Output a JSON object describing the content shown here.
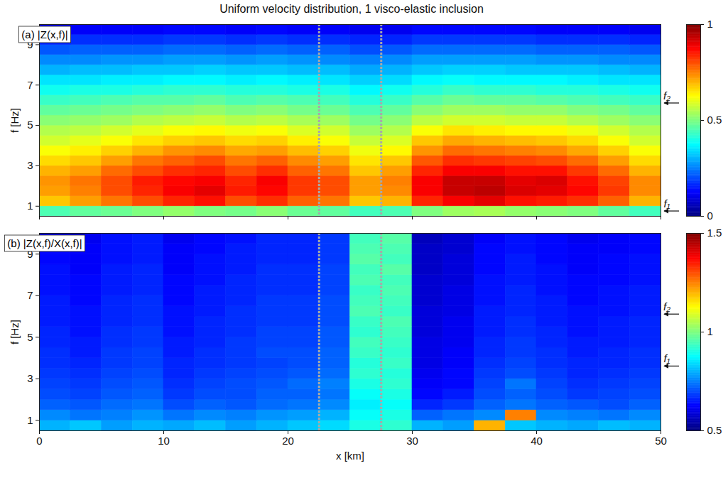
{
  "title": "Uniform velocity distribution, 1 visco-elastic inclusion",
  "chart_data": [
    {
      "type": "heatmap",
      "title": "(a) |Z(x,f)|",
      "ylabel": "f [Hz]",
      "xlim": [
        0,
        50
      ],
      "ylim": [
        0.5,
        10
      ],
      "xticks": [
        0,
        10,
        20,
        30,
        40,
        50
      ],
      "yticks": [
        1,
        3,
        5,
        7,
        9
      ],
      "tick_labels": "y",
      "x_bins": [
        0,
        2.5,
        5,
        7.5,
        10,
        12.5,
        15,
        17.5,
        20,
        22.5,
        25,
        27.5,
        30,
        32.5,
        35,
        37.5,
        40,
        42.5,
        45,
        47.5,
        50
      ],
      "y_bins": [
        0.5,
        1,
        1.5,
        2,
        2.5,
        3,
        3.5,
        4,
        4.5,
        5,
        5.5,
        6,
        6.5,
        7,
        7.5,
        8,
        8.5,
        9,
        9.5,
        10
      ],
      "values": [
        [
          0.45,
          0.47,
          0.48,
          0.5,
          0.52,
          0.5,
          0.49,
          0.51,
          0.48,
          0.47,
          0.44,
          0.45,
          0.5,
          0.53,
          0.54,
          0.52,
          0.51,
          0.5,
          0.47,
          0.44
        ],
        [
          0.68,
          0.72,
          0.76,
          0.8,
          0.84,
          0.86,
          0.8,
          0.83,
          0.78,
          0.76,
          0.68,
          0.7,
          0.84,
          0.88,
          0.9,
          0.86,
          0.85,
          0.83,
          0.78,
          0.7
        ],
        [
          0.72,
          0.75,
          0.8,
          0.84,
          0.88,
          0.9,
          0.85,
          0.87,
          0.82,
          0.8,
          0.72,
          0.74,
          0.88,
          0.93,
          0.94,
          0.91,
          0.9,
          0.87,
          0.82,
          0.74
        ],
        [
          0.73,
          0.76,
          0.8,
          0.85,
          0.87,
          0.88,
          0.84,
          0.88,
          0.82,
          0.8,
          0.72,
          0.75,
          0.88,
          0.93,
          0.93,
          0.9,
          0.91,
          0.86,
          0.81,
          0.74
        ],
        [
          0.7,
          0.72,
          0.77,
          0.8,
          0.83,
          0.84,
          0.8,
          0.83,
          0.78,
          0.76,
          0.68,
          0.72,
          0.84,
          0.88,
          0.88,
          0.86,
          0.86,
          0.82,
          0.77,
          0.7
        ],
        [
          0.66,
          0.68,
          0.72,
          0.76,
          0.78,
          0.8,
          0.76,
          0.78,
          0.74,
          0.72,
          0.65,
          0.68,
          0.79,
          0.83,
          0.82,
          0.81,
          0.8,
          0.77,
          0.72,
          0.66
        ],
        [
          0.62,
          0.64,
          0.67,
          0.7,
          0.73,
          0.74,
          0.71,
          0.72,
          0.69,
          0.67,
          0.61,
          0.63,
          0.73,
          0.77,
          0.76,
          0.75,
          0.74,
          0.71,
          0.67,
          0.62
        ],
        [
          0.58,
          0.6,
          0.62,
          0.65,
          0.67,
          0.68,
          0.66,
          0.67,
          0.64,
          0.62,
          0.57,
          0.59,
          0.68,
          0.71,
          0.7,
          0.69,
          0.68,
          0.66,
          0.62,
          0.58
        ],
        [
          0.55,
          0.56,
          0.58,
          0.6,
          0.62,
          0.63,
          0.61,
          0.62,
          0.59,
          0.58,
          0.53,
          0.55,
          0.62,
          0.65,
          0.64,
          0.63,
          0.63,
          0.61,
          0.58,
          0.55
        ],
        [
          0.51,
          0.52,
          0.53,
          0.55,
          0.56,
          0.57,
          0.55,
          0.56,
          0.54,
          0.53,
          0.49,
          0.51,
          0.56,
          0.58,
          0.58,
          0.57,
          0.57,
          0.55,
          0.53,
          0.51
        ],
        [
          0.47,
          0.48,
          0.49,
          0.5,
          0.51,
          0.52,
          0.5,
          0.51,
          0.49,
          0.48,
          0.45,
          0.47,
          0.51,
          0.53,
          0.53,
          0.52,
          0.52,
          0.5,
          0.49,
          0.47
        ],
        [
          0.43,
          0.44,
          0.45,
          0.46,
          0.46,
          0.47,
          0.45,
          0.46,
          0.45,
          0.44,
          0.41,
          0.43,
          0.46,
          0.48,
          0.47,
          0.47,
          0.46,
          0.45,
          0.44,
          0.43
        ],
        [
          0.39,
          0.4,
          0.4,
          0.41,
          0.42,
          0.42,
          0.41,
          0.41,
          0.4,
          0.4,
          0.37,
          0.39,
          0.41,
          0.43,
          0.42,
          0.42,
          0.41,
          0.41,
          0.4,
          0.39
        ],
        [
          0.35,
          0.35,
          0.36,
          0.36,
          0.37,
          0.37,
          0.36,
          0.37,
          0.36,
          0.35,
          0.33,
          0.34,
          0.37,
          0.38,
          0.37,
          0.37,
          0.37,
          0.36,
          0.35,
          0.35
        ],
        [
          0.3,
          0.31,
          0.31,
          0.32,
          0.32,
          0.33,
          0.32,
          0.32,
          0.31,
          0.31,
          0.29,
          0.3,
          0.32,
          0.33,
          0.33,
          0.32,
          0.32,
          0.32,
          0.31,
          0.3
        ],
        [
          0.26,
          0.26,
          0.27,
          0.27,
          0.28,
          0.28,
          0.27,
          0.28,
          0.27,
          0.26,
          0.25,
          0.26,
          0.28,
          0.28,
          0.28,
          0.28,
          0.27,
          0.27,
          0.26,
          0.26
        ],
        [
          0.21,
          0.22,
          0.22,
          0.22,
          0.23,
          0.23,
          0.22,
          0.23,
          0.22,
          0.22,
          0.2,
          0.21,
          0.23,
          0.23,
          0.23,
          0.23,
          0.22,
          0.22,
          0.22,
          0.21
        ],
        [
          0.16,
          0.17,
          0.17,
          0.17,
          0.18,
          0.18,
          0.17,
          0.18,
          0.17,
          0.17,
          0.16,
          0.16,
          0.18,
          0.18,
          0.18,
          0.18,
          0.17,
          0.17,
          0.17,
          0.16
        ],
        [
          0.11,
          0.12,
          0.12,
          0.12,
          0.13,
          0.13,
          0.12,
          0.13,
          0.12,
          0.12,
          0.11,
          0.11,
          0.13,
          0.13,
          0.13,
          0.13,
          0.12,
          0.12,
          0.12,
          0.11
        ]
      ],
      "colorbar": {
        "range": [
          0,
          1
        ],
        "ticks": [
          0,
          0.5,
          1
        ]
      },
      "inclusion": [
        22.5,
        27.5
      ],
      "annotations": [
        {
          "text": "f₂",
          "y": 6.2
        },
        {
          "text": "f₁",
          "y": 0.85
        }
      ]
    },
    {
      "type": "heatmap",
      "title": "(b) |Z(x,f)/X(x,f)|",
      "xlabel": "x [km]",
      "ylabel": "f [Hz]",
      "xlim": [
        0,
        50
      ],
      "ylim": [
        0.5,
        10
      ],
      "xticks": [
        0,
        10,
        20,
        30,
        40,
        50
      ],
      "yticks": [
        1,
        3,
        5,
        7,
        9
      ],
      "x_bins": [
        0,
        2.5,
        5,
        7.5,
        10,
        12.5,
        15,
        17.5,
        20,
        22.5,
        25,
        27.5,
        30,
        32.5,
        35,
        37.5,
        40,
        42.5,
        45,
        47.5,
        50
      ],
      "y_bins": [
        0.5,
        1,
        1.5,
        2,
        2.5,
        3,
        3.5,
        4,
        4.5,
        5,
        5.5,
        6,
        6.5,
        7,
        7.5,
        8,
        8.5,
        9,
        9.5,
        10
      ],
      "values": [
        [
          0.8,
          0.82,
          0.78,
          0.8,
          0.79,
          0.81,
          0.78,
          0.8,
          0.82,
          0.84,
          0.9,
          0.92,
          0.8,
          0.78,
          1.2,
          0.82,
          0.8,
          0.79,
          0.81,
          0.8
        ],
        [
          0.76,
          0.74,
          0.75,
          0.77,
          0.74,
          0.76,
          0.75,
          0.77,
          0.78,
          0.8,
          0.88,
          0.9,
          0.72,
          0.74,
          0.76,
          1.25,
          0.76,
          0.75,
          0.74,
          0.76
        ],
        [
          0.72,
          0.71,
          0.73,
          0.74,
          0.7,
          0.72,
          0.71,
          0.73,
          0.74,
          0.76,
          0.86,
          0.88,
          0.66,
          0.68,
          0.72,
          0.74,
          0.72,
          0.71,
          0.7,
          0.72
        ],
        [
          0.7,
          0.69,
          0.71,
          0.72,
          0.68,
          0.7,
          0.7,
          0.72,
          0.72,
          0.74,
          0.88,
          0.9,
          0.63,
          0.65,
          0.7,
          0.72,
          0.7,
          0.68,
          0.69,
          0.7
        ],
        [
          0.69,
          0.68,
          0.7,
          0.71,
          0.67,
          0.69,
          0.7,
          0.71,
          0.73,
          0.75,
          0.9,
          0.92,
          0.62,
          0.63,
          0.69,
          0.74,
          0.69,
          0.67,
          0.68,
          0.69
        ],
        [
          0.68,
          0.67,
          0.69,
          0.7,
          0.66,
          0.68,
          0.69,
          0.7,
          0.71,
          0.73,
          0.92,
          0.91,
          0.61,
          0.63,
          0.68,
          0.7,
          0.68,
          0.66,
          0.67,
          0.68
        ],
        [
          0.67,
          0.66,
          0.68,
          0.69,
          0.66,
          0.67,
          0.68,
          0.69,
          0.7,
          0.72,
          0.91,
          0.93,
          0.6,
          0.62,
          0.67,
          0.69,
          0.67,
          0.66,
          0.66,
          0.67
        ],
        [
          0.67,
          0.65,
          0.68,
          0.69,
          0.65,
          0.67,
          0.68,
          0.7,
          0.7,
          0.72,
          0.93,
          0.92,
          0.6,
          0.62,
          0.66,
          0.68,
          0.67,
          0.65,
          0.66,
          0.67
        ],
        [
          0.66,
          0.65,
          0.67,
          0.68,
          0.65,
          0.66,
          0.68,
          0.69,
          0.69,
          0.71,
          0.94,
          0.93,
          0.6,
          0.61,
          0.66,
          0.68,
          0.66,
          0.65,
          0.65,
          0.66
        ],
        [
          0.66,
          0.64,
          0.67,
          0.68,
          0.64,
          0.66,
          0.67,
          0.69,
          0.69,
          0.71,
          0.92,
          0.94,
          0.59,
          0.61,
          0.65,
          0.67,
          0.66,
          0.64,
          0.65,
          0.66
        ],
        [
          0.65,
          0.64,
          0.66,
          0.67,
          0.64,
          0.66,
          0.67,
          0.68,
          0.68,
          0.7,
          0.93,
          0.95,
          0.59,
          0.61,
          0.65,
          0.67,
          0.65,
          0.64,
          0.65,
          0.66
        ],
        [
          0.65,
          0.64,
          0.66,
          0.67,
          0.64,
          0.65,
          0.67,
          0.68,
          0.68,
          0.7,
          0.95,
          0.93,
          0.59,
          0.6,
          0.65,
          0.66,
          0.65,
          0.64,
          0.64,
          0.65
        ],
        [
          0.65,
          0.63,
          0.66,
          0.67,
          0.63,
          0.65,
          0.66,
          0.68,
          0.68,
          0.7,
          0.94,
          0.94,
          0.58,
          0.6,
          0.64,
          0.66,
          0.65,
          0.63,
          0.64,
          0.65
        ],
        [
          0.64,
          0.63,
          0.65,
          0.66,
          0.63,
          0.65,
          0.66,
          0.67,
          0.67,
          0.69,
          0.93,
          0.95,
          0.58,
          0.6,
          0.64,
          0.66,
          0.64,
          0.63,
          0.64,
          0.65
        ],
        [
          0.64,
          0.63,
          0.65,
          0.66,
          0.63,
          0.64,
          0.66,
          0.67,
          0.67,
          0.69,
          0.95,
          0.94,
          0.58,
          0.59,
          0.64,
          0.65,
          0.64,
          0.63,
          0.63,
          0.64
        ],
        [
          0.64,
          0.62,
          0.65,
          0.66,
          0.62,
          0.64,
          0.65,
          0.67,
          0.67,
          0.69,
          0.94,
          0.96,
          0.57,
          0.59,
          0.63,
          0.65,
          0.64,
          0.62,
          0.63,
          0.64
        ],
        [
          0.63,
          0.62,
          0.64,
          0.65,
          0.62,
          0.64,
          0.65,
          0.66,
          0.66,
          0.68,
          0.96,
          0.94,
          0.57,
          0.59,
          0.63,
          0.65,
          0.63,
          0.62,
          0.63,
          0.64
        ],
        [
          0.63,
          0.62,
          0.64,
          0.65,
          0.62,
          0.63,
          0.65,
          0.66,
          0.66,
          0.68,
          0.95,
          0.95,
          0.57,
          0.58,
          0.63,
          0.64,
          0.63,
          0.62,
          0.62,
          0.63
        ],
        [
          0.63,
          0.61,
          0.64,
          0.65,
          0.61,
          0.63,
          0.64,
          0.66,
          0.66,
          0.68,
          0.94,
          0.96,
          0.56,
          0.58,
          0.62,
          0.64,
          0.63,
          0.61,
          0.62,
          0.63
        ]
      ],
      "colorbar": {
        "range": [
          0.5,
          1.5
        ],
        "ticks": [
          0.5,
          1,
          1.5
        ]
      },
      "inclusion": [
        22.5,
        27.5
      ],
      "annotations": [
        {
          "text": "f₂",
          "y": 6.2
        },
        {
          "text": "f₁",
          "y": 3.7
        }
      ]
    }
  ]
}
